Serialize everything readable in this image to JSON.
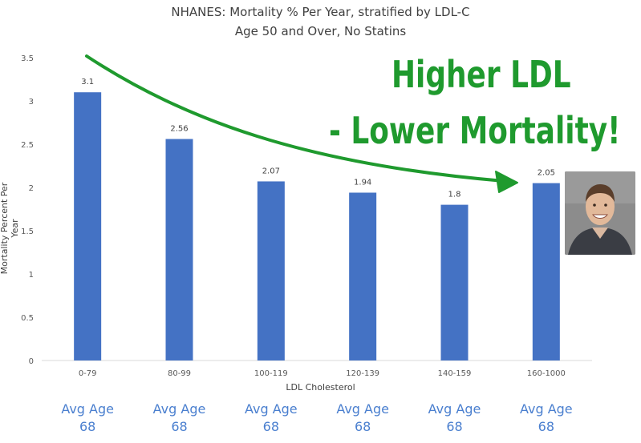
{
  "chart_data": {
    "type": "bar",
    "title": "NHANES: Mortality % Per Year, stratified by LDL-C",
    "subtitle": "Age 50 and Over, No Statins",
    "categories": [
      "0-79",
      "80-99",
      "100-119",
      "120-139",
      "140-159",
      "160-1000"
    ],
    "values": [
      3.1,
      2.56,
      2.07,
      1.94,
      1.8,
      2.05
    ],
    "value_labels": [
      "3.1",
      "2.56",
      "2.07",
      "1.94",
      "1.8",
      "2.05"
    ],
    "xlabel": "LDL Cholesterol",
    "ylabel": "Mortality Percent Per Year",
    "ylim": [
      0,
      3.5
    ],
    "yticks": [
      "0",
      "0.5",
      "1",
      "1.5",
      "2",
      "2.5",
      "3",
      "3.5"
    ],
    "yticks_values": [
      0,
      0.5,
      1,
      1.5,
      2,
      2.5,
      3,
      3.5
    ],
    "grid": false,
    "bar_color": "#4472c4"
  },
  "annotation": {
    "line1": "Higher LDL",
    "line2": "- Lower Mortality!",
    "color": "#1f9a2e"
  },
  "age_labels": [
    {
      "top": "Avg Age",
      "bottom": "68"
    },
    {
      "top": "Avg Age",
      "bottom": "68"
    },
    {
      "top": "Avg Age",
      "bottom": "68"
    },
    {
      "top": "Avg Age",
      "bottom": "68"
    },
    {
      "top": "Avg Age",
      "bottom": "68"
    },
    {
      "top": "Avg Age",
      "bottom": "68"
    }
  ]
}
